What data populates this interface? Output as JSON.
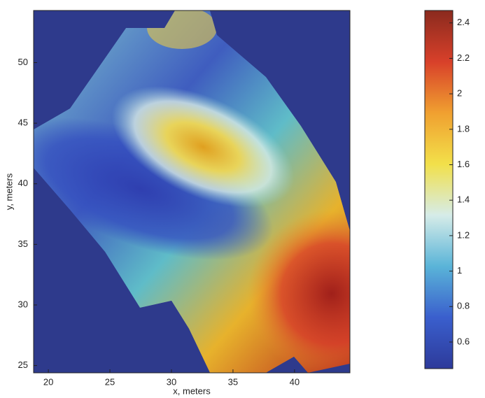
{
  "chart_data": {
    "type": "heatmap",
    "xlabel": "x, meters",
    "ylabel": "y, meters",
    "xlim": [
      18.8,
      44.5
    ],
    "xticks": [
      20,
      25,
      30,
      35,
      40
    ],
    "ylim": [
      24.4,
      54.3
    ],
    "yticks": [
      25,
      30,
      35,
      40,
      45,
      50
    ],
    "colorbar": {
      "lim": [
        0.45,
        2.47
      ],
      "ticks": [
        0.6,
        0.8,
        1,
        1.2,
        1.4,
        1.6,
        1.8,
        2,
        2.2,
        2.4
      ],
      "colormap": "jet"
    },
    "background": "#2e3a8c"
  }
}
